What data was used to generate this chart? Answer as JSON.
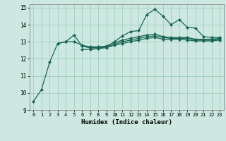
{
  "title": "",
  "xlabel": "Humidex (Indice chaleur)",
  "xlim": [
    -0.5,
    23.5
  ],
  "ylim": [
    9,
    15.2
  ],
  "yticks": [
    9,
    10,
    11,
    12,
    13,
    14,
    15
  ],
  "xticks": [
    0,
    1,
    2,
    3,
    4,
    5,
    6,
    7,
    8,
    9,
    10,
    11,
    12,
    13,
    14,
    15,
    16,
    17,
    18,
    19,
    20,
    21,
    22,
    23
  ],
  "background_color": "#cce8e0",
  "grid_color": "#99ccbb",
  "line_color": "#1a6655",
  "line_width": 0.9,
  "marker": "D",
  "marker_size": 2.0,
  "lines": [
    [
      9.5,
      10.2,
      11.8,
      12.9,
      13.0,
      13.4,
      12.75,
      12.65,
      12.65,
      12.7,
      13.0,
      13.35,
      13.6,
      13.65,
      14.6,
      14.9,
      14.5,
      14.0,
      14.3,
      13.85,
      13.8,
      13.3,
      13.25,
      13.25
    ],
    [
      null,
      null,
      null,
      12.9,
      13.0,
      13.0,
      12.8,
      12.7,
      12.7,
      12.75,
      12.95,
      13.1,
      13.2,
      13.3,
      13.4,
      13.45,
      13.3,
      13.25,
      13.25,
      13.25,
      13.15,
      13.15,
      13.15,
      13.2
    ],
    [
      null,
      null,
      null,
      null,
      null,
      null,
      12.75,
      12.65,
      12.65,
      12.7,
      12.85,
      13.0,
      13.1,
      13.2,
      13.3,
      13.35,
      13.25,
      13.2,
      13.2,
      13.2,
      13.1,
      13.1,
      13.1,
      13.15
    ],
    [
      null,
      null,
      null,
      null,
      null,
      null,
      12.55,
      12.55,
      12.6,
      12.65,
      12.8,
      12.9,
      13.0,
      13.1,
      13.2,
      13.25,
      13.15,
      13.15,
      13.15,
      13.1,
      13.05,
      13.05,
      13.05,
      13.1
    ]
  ]
}
